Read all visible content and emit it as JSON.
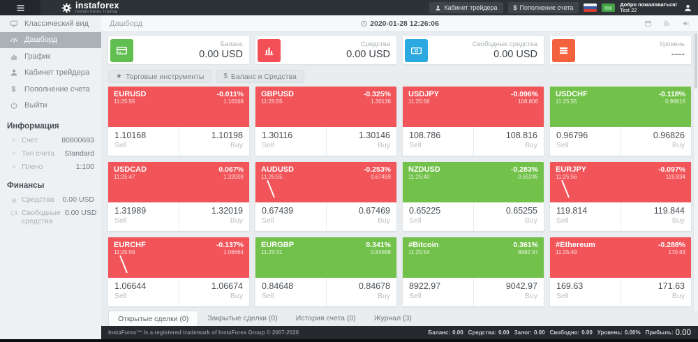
{
  "header": {
    "logo_text": "instaforex",
    "logo_tagline": "Instant Forex Trading",
    "nav": [
      {
        "label": "Кабинет трейдера",
        "icon": "user-icon"
      },
      {
        "label": "Пополнение счета",
        "icon": "dollar-icon"
      }
    ],
    "welcome_line1": "Добро пожаловаться!",
    "welcome_line2": "Test 22"
  },
  "sidebar": {
    "menu": [
      {
        "label": "Классический вид",
        "icon": "monitor-icon"
      },
      {
        "label": "Дашборд",
        "icon": "dashboard-icon",
        "active": true
      },
      {
        "label": "График",
        "icon": "chart-icon"
      },
      {
        "label": "Кабинет трейдера",
        "icon": "user-icon"
      },
      {
        "label": "Пополнение счета",
        "icon": "dollar-icon"
      },
      {
        "label": "Выйти",
        "icon": "power-icon"
      }
    ],
    "info_heading": "Информация",
    "info_rows": [
      {
        "label": "Счет",
        "value": "80800693"
      },
      {
        "label": "Тип счета",
        "value": "Standard"
      },
      {
        "label": "Плечо",
        "value": "1:100"
      }
    ],
    "finance_heading": "Финансы",
    "finance_rows": [
      {
        "label": "Средства",
        "value": "0.00 USD",
        "icon": "chart-icon"
      },
      {
        "label": "Свободные средства",
        "value": "0.00 USD",
        "icon": "wallet-icon"
      }
    ]
  },
  "topbar": {
    "breadcrumb": "Дашборд",
    "datetime": "2020-01-28 12:26:06"
  },
  "summary_cards": [
    {
      "label": "Баланс",
      "value": "0.00 USD",
      "icon": "credit-card-icon",
      "color": "#61bf51"
    },
    {
      "label": "Средства",
      "value": "0.00 USD",
      "icon": "bar-chart-icon",
      "color": "#f25056"
    },
    {
      "label": "Свободные средства",
      "value": "0.00 USD",
      "icon": "banknote-icon",
      "color": "#2ba9e0"
    },
    {
      "label": "Уровень",
      "value": "----",
      "icon": "menu-icon",
      "color": "#f4623d"
    }
  ],
  "toolbar": [
    {
      "label": "Торговые инструменты",
      "icon": "star-icon"
    },
    {
      "label": "Баланс и Средства",
      "icon": "dollar-icon"
    }
  ],
  "labels": {
    "sell": "Sell",
    "buy": "Buy"
  },
  "tiles": [
    {
      "symbol": "EURUSD",
      "time": "11:25:55",
      "change": "-0.011%",
      "last": "1.10168",
      "sell": "1.10168",
      "buy": "1.10198",
      "trend": "down"
    },
    {
      "symbol": "GBPUSD",
      "time": "11:25:55",
      "change": "-0.325%",
      "last": "1.30136",
      "sell": "1.30116",
      "buy": "1.30146",
      "trend": "down"
    },
    {
      "symbol": "USDJPY",
      "time": "11:25:56",
      "change": "-0.096%",
      "last": "108.806",
      "sell": "108.786",
      "buy": "108.816",
      "trend": "down"
    },
    {
      "symbol": "USDCHF",
      "time": "11:25:55",
      "change": "-0.118%",
      "last": "0.96816",
      "sell": "0.96796",
      "buy": "0.96826",
      "trend": "up"
    },
    {
      "symbol": "USDCAD",
      "time": "11:25:47",
      "change": "0.067%",
      "last": "1.32009",
      "sell": "1.31989",
      "buy": "1.32019",
      "trend": "down"
    },
    {
      "symbol": "AUDUSD",
      "time": "11:25:55",
      "change": "-0.253%",
      "last": "0.67459",
      "sell": "0.67439",
      "buy": "0.67469",
      "trend": "down",
      "spark": true
    },
    {
      "symbol": "NZDUSD",
      "time": "11:25:40",
      "change": "-0.283%",
      "last": "0.65245",
      "sell": "0.65225",
      "buy": "0.65255",
      "trend": "up"
    },
    {
      "symbol": "EURJPY",
      "time": "11:25:56",
      "change": "-0.097%",
      "last": "119.834",
      "sell": "119.814",
      "buy": "119.844",
      "trend": "down",
      "spark": true
    },
    {
      "symbol": "EURCHF",
      "time": "11:25:56",
      "change": "-0.137%",
      "last": "1.06664",
      "sell": "1.06644",
      "buy": "1.06674",
      "trend": "down",
      "spark": true
    },
    {
      "symbol": "EURGBP",
      "time": "11:25:31",
      "change": "0.341%",
      "last": "0.84668",
      "sell": "0.84648",
      "buy": "0.84678",
      "trend": "up"
    },
    {
      "symbol": "#Bitcoin",
      "time": "11:25:54",
      "change": "0.361%",
      "last": "8982.97",
      "sell": "8922.97",
      "buy": "9042.97",
      "trend": "up"
    },
    {
      "symbol": "#Ethereum",
      "time": "11:25:49",
      "change": "-0.288%",
      "last": "170.63",
      "sell": "169.63",
      "buy": "171.63",
      "trend": "down"
    }
  ],
  "bottom_tabs": [
    {
      "label": "Открытые сделки (0)",
      "active": true
    },
    {
      "label": "Закрытые сделки (0)"
    },
    {
      "label": "История счета (0)"
    },
    {
      "label": "Журнал (3)"
    }
  ],
  "footer": {
    "copyright": "InstaForex™ is a registered trademark of InstaForex Group © 2007-2020",
    "stats": [
      {
        "label": "Баланс:",
        "value": "0.00"
      },
      {
        "label": "Средства:",
        "value": "0.00"
      },
      {
        "label": "Залог:",
        "value": "0.00"
      },
      {
        "label": "Свободно:",
        "value": "0.00"
      },
      {
        "label": "Уровень:",
        "value": "0.00%"
      },
      {
        "label": "Прибыль:",
        "value": "0.00",
        "big": true
      }
    ]
  }
}
